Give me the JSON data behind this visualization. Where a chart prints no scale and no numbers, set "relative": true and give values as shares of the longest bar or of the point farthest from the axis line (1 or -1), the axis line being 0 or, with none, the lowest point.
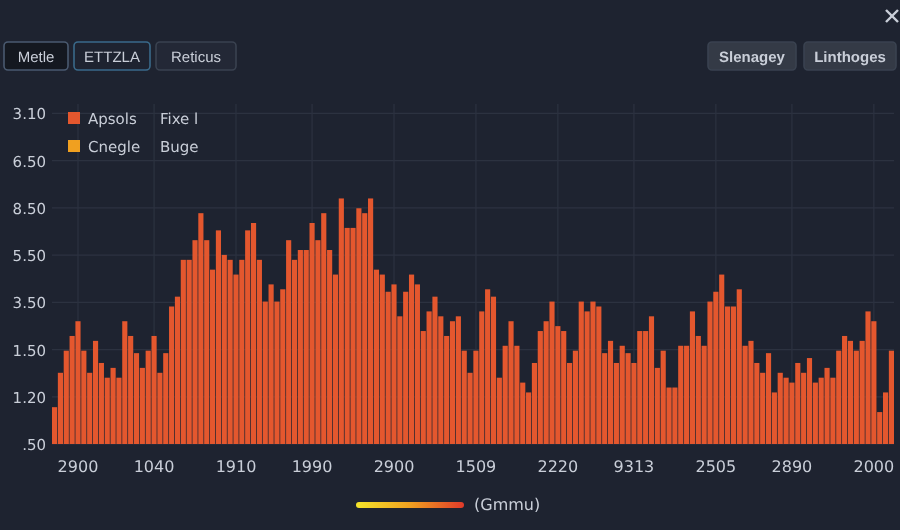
{
  "chart_data": {
    "type": "bar",
    "xlabel": "(Gmmu)",
    "categories": [
      null,
      null,
      null,
      null,
      "2900",
      null,
      null,
      null,
      null,
      null,
      null,
      null,
      null,
      null,
      null,
      null,
      null,
      "1040",
      null,
      null,
      null,
      null,
      null,
      null,
      null,
      null,
      null,
      null,
      null,
      null,
      null,
      "1910",
      null,
      null,
      null,
      null,
      null,
      null,
      null,
      null,
      null,
      null,
      null,
      null,
      "1990",
      null,
      null,
      null,
      null,
      null,
      null,
      null,
      null,
      null,
      null,
      null,
      null,
      null,
      "2900",
      null,
      null,
      null,
      null,
      null,
      null,
      null,
      null,
      null,
      null,
      null,
      null,
      null,
      "1509",
      null,
      null,
      null,
      null,
      null,
      null,
      null,
      null,
      null,
      null,
      null,
      null,
      null,
      "2220",
      null,
      null,
      null,
      null,
      null,
      null,
      null,
      null,
      null,
      null,
      null,
      null,
      "9313",
      null,
      null,
      null,
      null,
      null,
      null,
      null,
      null,
      null,
      null,
      null,
      null,
      null,
      "2505",
      null,
      null,
      null,
      null,
      null,
      null,
      null,
      null,
      null,
      null,
      null,
      null,
      "2890",
      null,
      null,
      null,
      null,
      null,
      null,
      null,
      null,
      null,
      null,
      null,
      null,
      null,
      "2000",
      null,
      null,
      null
    ],
    "series": [
      {
        "name": "Apsols",
        "color": "#e4572e",
        "values": [
          0.15,
          0.29,
          0.38,
          0.44,
          0.5,
          0.38,
          0.29,
          0.42,
          0.33,
          0.27,
          0.31,
          0.27,
          0.5,
          0.44,
          0.37,
          0.31,
          0.38,
          0.44,
          0.29,
          0.37,
          0.56,
          0.6,
          0.75,
          0.75,
          0.83,
          0.94,
          0.83,
          0.71,
          0.87,
          0.77,
          0.75,
          0.69,
          0.75,
          0.87,
          0.9,
          0.75,
          0.58,
          0.65,
          0.58,
          0.63,
          0.83,
          0.75,
          0.79,
          0.79,
          0.9,
          0.83,
          0.94,
          0.79,
          0.69,
          1,
          0.88,
          0.88,
          0.96,
          0.94,
          1,
          0.71,
          0.69,
          0.62,
          0.65,
          0.52,
          0.62,
          0.69,
          0.65,
          0.46,
          0.54,
          0.6,
          0.52,
          0.44,
          0.5,
          0.52,
          0.38,
          0.29,
          0.38,
          0.54,
          0.63,
          0.6,
          0.27,
          0.4,
          0.5,
          0.4,
          0.25,
          0.21,
          0.33,
          0.46,
          0.5,
          0.58,
          0.48,
          0.46,
          0.33,
          0.38,
          0.58,
          0.54,
          0.58,
          0.56,
          0.37,
          0.42,
          0.33,
          0.4,
          0.37,
          0.33,
          0.46,
          0.46,
          0.52,
          0.31,
          0.38,
          0.23,
          0.23,
          0.4,
          0.4,
          0.54,
          0.44,
          0.4,
          0.58,
          0.62,
          0.69,
          0.56,
          0.56,
          0.63,
          0.4,
          0.42,
          0.33,
          0.29,
          0.37,
          0.21,
          0.29,
          0.27,
          0.25,
          0.33,
          0.29,
          0.35,
          0.25,
          0.27,
          0.31,
          0.27,
          0.38,
          0.44,
          0.42,
          0.38,
          0.42,
          0.54,
          0.5,
          0.13,
          0.21,
          0.38
        ]
      }
    ],
    "relative": true,
    "grid": true,
    "legend": "top left",
    "annotations": [
      "Fixe l",
      "Cnegle",
      "Buge",
      "Metle",
      "ETTZLA",
      "Reticus",
      "Slenagey",
      "Linthoges",
      ".50",
      "1.20",
      "1.50",
      "3.50",
      "5.50",
      "8.50",
      "6.50",
      "3.10"
    ]
  }
}
